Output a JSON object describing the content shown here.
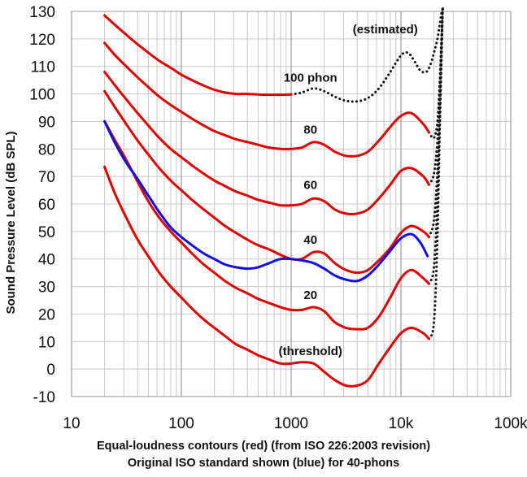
{
  "chart_data": {
    "type": "line",
    "title": "",
    "xlabel": "",
    "ylabel": "Sound Pressure Level (dB SPL)",
    "xscale": "log",
    "xlim": [
      10,
      100000
    ],
    "ylim": [
      -10,
      130
    ],
    "x_ticks": [
      10,
      100,
      1000,
      10000,
      100000
    ],
    "x_tick_labels": [
      "10",
      "100",
      "1000",
      "10k",
      "100k"
    ],
    "y_ticks": [
      -10,
      0,
      10,
      20,
      30,
      40,
      50,
      60,
      70,
      80,
      90,
      100,
      110,
      120,
      130
    ],
    "y_tick_labels": [
      "-10",
      "0",
      "10",
      "20",
      "30",
      "40",
      "50",
      "60",
      "70",
      "80",
      "90",
      "100",
      "110",
      "120",
      "130"
    ],
    "grid": true,
    "captions": [
      "Equal-loudness contours (red) (from ISO 226:2003 revision)",
      "Original ISO standard shown (blue) for 40-phons"
    ],
    "colors": {
      "iso2003": "#e00000",
      "original": "#1010e0",
      "estimated": "#111111",
      "grid": "#c8c8c8"
    },
    "series": [
      {
        "name": "threshold",
        "label": "(threshold)",
        "label_at": [
          1500,
          5
        ],
        "color": "#e00000",
        "style": "solid",
        "x": [
          20,
          25,
          31.5,
          40,
          50,
          63,
          80,
          100,
          125,
          160,
          200,
          250,
          315,
          400,
          500,
          630,
          800,
          1000,
          1250,
          1600,
          2000,
          2500,
          3150,
          4000,
          5000,
          6300,
          8000,
          10000,
          12500,
          16000,
          18000
        ],
        "y": [
          73.5,
          63.5,
          55,
          47,
          41,
          35,
          30,
          26,
          22,
          18,
          15,
          12,
          9,
          7,
          5,
          3.5,
          2,
          2,
          2.5,
          2,
          -1,
          -4,
          -6,
          -6,
          -4,
          2,
          8,
          13,
          15,
          13,
          11
        ]
      },
      {
        "name": "20 phon",
        "label": "20",
        "label_at": [
          1500,
          25.5
        ],
        "color": "#e00000",
        "style": "solid",
        "x": [
          20,
          25,
          31.5,
          40,
          50,
          63,
          80,
          100,
          125,
          160,
          200,
          250,
          315,
          400,
          500,
          630,
          800,
          1000,
          1250,
          1600,
          2000,
          2500,
          3150,
          4000,
          5000,
          6300,
          8000,
          10000,
          12500,
          16000,
          18000
        ],
        "y": [
          90,
          83,
          76,
          68,
          61,
          55,
          50,
          46,
          42,
          38,
          35,
          32,
          29.5,
          27.5,
          25.5,
          24,
          22.5,
          21.5,
          21.5,
          22.5,
          21,
          17,
          15,
          14.5,
          15,
          19,
          26,
          33,
          36,
          33,
          31
        ]
      },
      {
        "name": "40 phon",
        "label": "40",
        "label_at": [
          1500,
          45.5
        ],
        "color": "#e00000",
        "style": "solid",
        "x": [
          20,
          25,
          31.5,
          40,
          50,
          63,
          80,
          100,
          125,
          160,
          200,
          250,
          315,
          400,
          500,
          630,
          800,
          1000,
          1250,
          1600,
          2000,
          2500,
          3150,
          4000,
          5000,
          6300,
          8000,
          10000,
          12500,
          16000,
          18000
        ],
        "y": [
          101,
          95,
          89,
          83,
          78,
          73,
          68.5,
          65,
          61.5,
          58,
          55,
          52,
          49.5,
          47,
          45,
          43.5,
          41.5,
          40,
          40,
          42.5,
          42,
          38.5,
          36,
          35,
          36,
          39.5,
          44,
          49.5,
          52,
          50,
          48
        ]
      },
      {
        "name": "60 phon",
        "label": "60",
        "label_at": [
          1500,
          65.5
        ],
        "color": "#e00000",
        "style": "solid",
        "x": [
          20,
          25,
          31.5,
          40,
          50,
          63,
          80,
          100,
          125,
          160,
          200,
          250,
          315,
          400,
          500,
          630,
          800,
          1000,
          1250,
          1600,
          2000,
          2500,
          3150,
          4000,
          5000,
          6300,
          8000,
          10000,
          12500,
          16000,
          18000
        ],
        "y": [
          108,
          103,
          98,
          93,
          88.5,
          84,
          80,
          77,
          74,
          71,
          68.5,
          66.5,
          64.5,
          63,
          61.5,
          60.5,
          59.5,
          59.5,
          60,
          62,
          61,
          58,
          56.5,
          56.5,
          58,
          62,
          67,
          72,
          73,
          70,
          67
        ]
      },
      {
        "name": "80 phon",
        "label": "80",
        "label_at": [
          1500,
          85.5
        ],
        "color": "#e00000",
        "style": "solid",
        "x": [
          20,
          25,
          31.5,
          40,
          50,
          63,
          80,
          100,
          125,
          160,
          200,
          250,
          315,
          400,
          500,
          630,
          800,
          1000,
          1250,
          1600,
          2000,
          2500,
          3150,
          4000,
          5000,
          6300,
          8000,
          10000,
          12500,
          16000,
          18000
        ],
        "y": [
          118.5,
          114,
          110,
          106,
          102.5,
          99,
          96,
          93.5,
          91,
          88.5,
          86.5,
          85,
          83.5,
          82.5,
          81.5,
          80.5,
          80,
          80,
          80.5,
          82.5,
          81.5,
          79,
          77.5,
          77.5,
          79,
          83,
          88,
          92,
          93,
          89,
          86
        ]
      },
      {
        "name": "100 phon",
        "label": "100 phon",
        "label_at": [
          1500,
          104.5
        ],
        "color": "#e00000",
        "style": "solid",
        "x": [
          20,
          25,
          31.5,
          40,
          50,
          63,
          80,
          100,
          125,
          160,
          200,
          250,
          315,
          400,
          500,
          630,
          800,
          1000
        ],
        "y": [
          128.5,
          125,
          121.5,
          118,
          115,
          112,
          109.5,
          107,
          105,
          103,
          101.5,
          100.5,
          100,
          100,
          99.8,
          99.7,
          99.7,
          99.8
        ]
      },
      {
        "name": "100 phon (estimated)",
        "label": "(estimated)",
        "label_at": [
          7200,
          122
        ],
        "color": "#111111",
        "style": "dotted",
        "x": [
          1000,
          1250,
          1600,
          2000,
          2500,
          3150,
          4000,
          5000,
          6300,
          8000,
          10000,
          11500,
          13000,
          15000,
          17000,
          18500,
          20000,
          21500,
          22500,
          23300,
          24000
        ],
        "y": [
          99.8,
          100.5,
          102,
          101,
          99,
          97.5,
          97.3,
          98.5,
          102,
          108,
          114,
          115,
          112.5,
          108.5,
          108,
          110.5,
          115,
          120,
          125,
          129,
          131
        ]
      },
      {
        "name": "80 phon (estimated tail)",
        "color": "#111111",
        "style": "dotted",
        "x": [
          18000,
          20000,
          21500,
          22500,
          23300,
          24000
        ],
        "y": [
          86,
          84,
          90,
          103,
          118,
          131
        ]
      },
      {
        "name": "60 phon (estimated tail)",
        "color": "#111111",
        "style": "dotted",
        "x": [
          18000,
          20000,
          21500,
          22500,
          23300,
          24000
        ],
        "y": [
          67,
          71,
          83,
          100,
          117,
          131
        ]
      },
      {
        "name": "40 phon (estimated tail)",
        "color": "#111111",
        "style": "dotted",
        "x": [
          18000,
          20000,
          21500,
          22500,
          23300,
          24000
        ],
        "y": [
          48,
          54,
          72,
          95,
          115,
          131
        ]
      },
      {
        "name": "20 phon (estimated tail)",
        "color": "#111111",
        "style": "dotted",
        "x": [
          18000,
          20000,
          21500,
          22500,
          23300,
          24000
        ],
        "y": [
          31,
          37,
          62,
          90,
          112,
          131
        ]
      },
      {
        "name": "threshold (estimated tail)",
        "color": "#111111",
        "style": "dotted",
        "x": [
          18000,
          20000,
          21500,
          22500,
          23300,
          24000
        ],
        "y": [
          11,
          17,
          48,
          85,
          110,
          131
        ]
      },
      {
        "name": "40 phon original ISO",
        "color": "#1010e0",
        "style": "solid",
        "x": [
          20,
          25,
          31.5,
          40,
          50,
          63,
          80,
          100,
          125,
          160,
          200,
          250,
          315,
          400,
          500,
          630,
          800,
          1000,
          1250,
          1600,
          2000,
          2500,
          3150,
          4000,
          5000,
          6300,
          8000,
          10000,
          12500,
          15000,
          17500
        ],
        "y": [
          90,
          82,
          75,
          69,
          63,
          57,
          51.5,
          48,
          45,
          42,
          40,
          38,
          37,
          36.5,
          37,
          38.5,
          40,
          40,
          39.5,
          38.5,
          36.5,
          34,
          32.5,
          32,
          34,
          38,
          43,
          47.5,
          49,
          46,
          41
        ]
      }
    ]
  }
}
